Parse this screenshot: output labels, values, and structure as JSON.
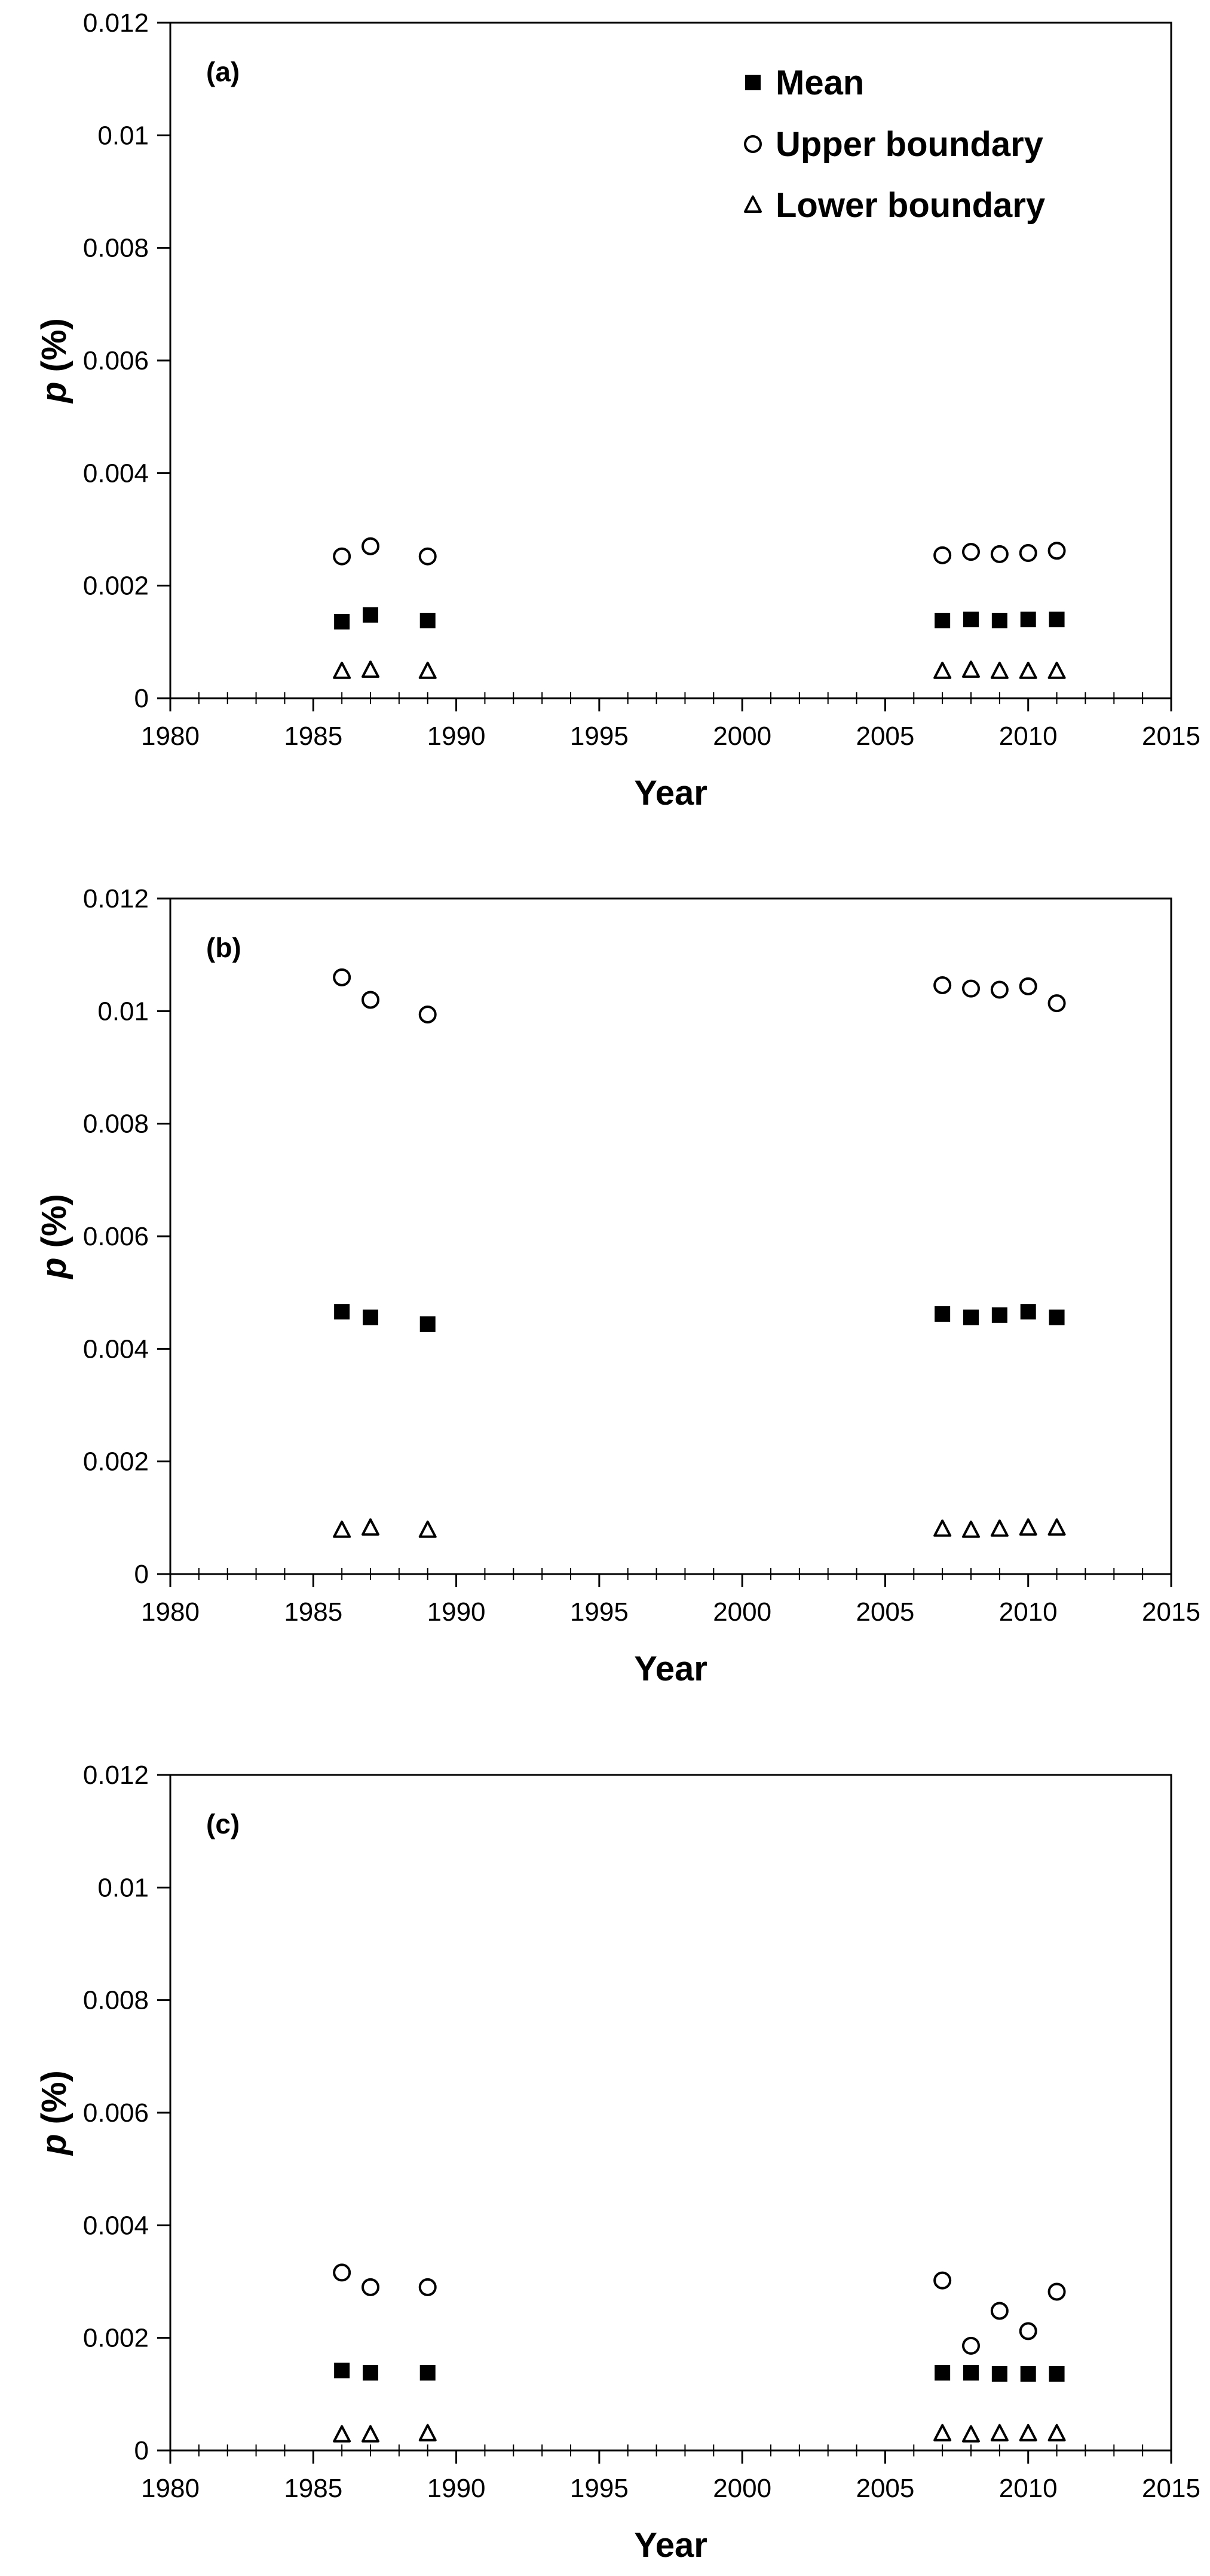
{
  "legend": {
    "mean_label": "Mean",
    "upper_label": "Upper boundary",
    "lower_label": "Lower boundary"
  },
  "chart_data": [
    {
      "type": "scatter",
      "panel_label": "(a)",
      "xlabel": "Year",
      "ylabel": "p (%)",
      "xlim": [
        1980,
        2015
      ],
      "ylim": [
        0,
        0.012
      ],
      "x_ticks": [
        "1980",
        "1985",
        "1990",
        "1995",
        "2000",
        "2005",
        "2010",
        "2015"
      ],
      "y_ticks": [
        "0",
        "0.002",
        "0.004",
        "0.006",
        "0.008",
        "0.01",
        "0.012"
      ],
      "grid": false,
      "legend_position": "top-right",
      "x": [
        1986,
        1987,
        1989,
        2007,
        2008,
        2009,
        2010,
        2011
      ],
      "series": [
        {
          "name": "Mean",
          "marker": "filled-square",
          "values": [
            0.00136,
            0.00148,
            0.00138,
            0.00138,
            0.0014,
            0.00138,
            0.0014,
            0.0014
          ]
        },
        {
          "name": "Upper boundary",
          "marker": "open-circle",
          "values": [
            0.00252,
            0.0027,
            0.00252,
            0.00254,
            0.0026,
            0.00256,
            0.00258,
            0.00262
          ]
        },
        {
          "name": "Lower boundary",
          "marker": "open-triangle",
          "values": [
            0.00048,
            0.0005,
            0.00048,
            0.00048,
            0.0005,
            0.00048,
            0.00048,
            0.00048
          ]
        }
      ]
    },
    {
      "type": "scatter",
      "panel_label": "(b)",
      "xlabel": "Year",
      "ylabel": "p (%)",
      "xlim": [
        1980,
        2015
      ],
      "ylim": [
        0,
        0.012
      ],
      "x_ticks": [
        "1980",
        "1985",
        "1990",
        "1995",
        "2000",
        "2005",
        "2010",
        "2015"
      ],
      "y_ticks": [
        "0",
        "0.002",
        "0.004",
        "0.006",
        "0.008",
        "0.01",
        "0.012"
      ],
      "grid": false,
      "x": [
        1986,
        1987,
        1989,
        2007,
        2008,
        2009,
        2010,
        2011
      ],
      "series": [
        {
          "name": "Mean",
          "marker": "filled-square",
          "values": [
            0.00466,
            0.00456,
            0.00444,
            0.00462,
            0.00456,
            0.0046,
            0.00466,
            0.00456
          ]
        },
        {
          "name": "Upper boundary",
          "marker": "open-circle",
          "values": [
            0.0106,
            0.0102,
            0.00994,
            0.01046,
            0.0104,
            0.01038,
            0.01044,
            0.01014
          ]
        },
        {
          "name": "Lower boundary",
          "marker": "open-triangle",
          "values": [
            0.00078,
            0.00082,
            0.00078,
            0.0008,
            0.00078,
            0.0008,
            0.00082,
            0.00082
          ]
        }
      ]
    },
    {
      "type": "scatter",
      "panel_label": "(c)",
      "xlabel": "Year",
      "ylabel": "p (%)",
      "xlim": [
        1980,
        2015
      ],
      "ylim": [
        0,
        0.012
      ],
      "x_ticks": [
        "1980",
        "1985",
        "1990",
        "1995",
        "2000",
        "2005",
        "2010",
        "2015"
      ],
      "y_ticks": [
        "0",
        "0.002",
        "0.004",
        "0.006",
        "0.008",
        "0.01",
        "0.012"
      ],
      "grid": false,
      "x": [
        1986,
        1987,
        1989,
        2007,
        2008,
        2009,
        2010,
        2011
      ],
      "series": [
        {
          "name": "Mean",
          "marker": "filled-square",
          "values": [
            0.00142,
            0.00138,
            0.00138,
            0.00138,
            0.00138,
            0.00136,
            0.00136,
            0.00136
          ]
        },
        {
          "name": "Upper boundary",
          "marker": "open-circle",
          "values": [
            0.00316,
            0.0029,
            0.0029,
            0.00302,
            0.00186,
            0.00248,
            0.00212,
            0.00282
          ]
        },
        {
          "name": "Lower boundary",
          "marker": "open-triangle",
          "values": [
            0.00028,
            0.00028,
            0.0003,
            0.0003,
            0.00028,
            0.0003,
            0.0003,
            0.0003
          ]
        }
      ]
    }
  ]
}
